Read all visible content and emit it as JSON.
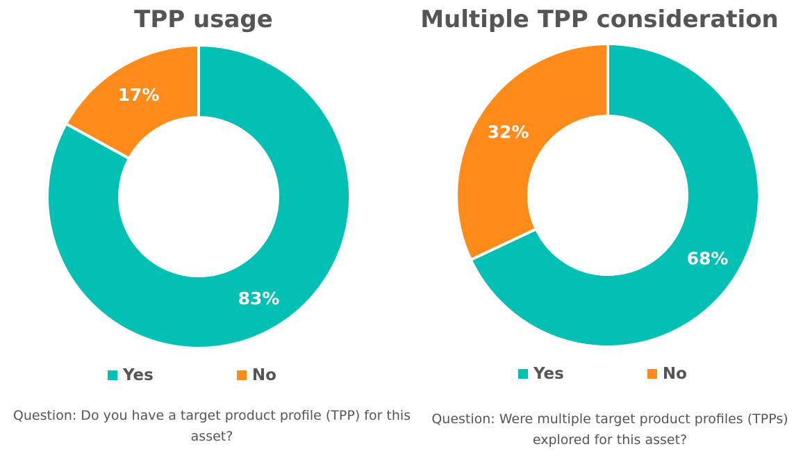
{
  "chart_data": [
    {
      "type": "pie",
      "title": "TPP usage",
      "categories": [
        "Yes",
        "No"
      ],
      "values": [
        83,
        17
      ],
      "data_labels": [
        "83%",
        "17%"
      ],
      "colors": [
        "#00BFB3",
        "#FF8C1A"
      ],
      "legend": "bottom",
      "caption": "Question: Do you have a target product profile (TPP) for this asset?"
    },
    {
      "type": "pie",
      "title": "Multiple TPP consideration",
      "categories": [
        "Yes",
        "No"
      ],
      "values": [
        68,
        32
      ],
      "data_labels": [
        "68%",
        "32%"
      ],
      "colors": [
        "#00BFB3",
        "#FF8C1A"
      ],
      "legend": "bottom",
      "caption": "Question: Were multiple target product profiles (TPPs) explored for this asset?"
    }
  ]
}
